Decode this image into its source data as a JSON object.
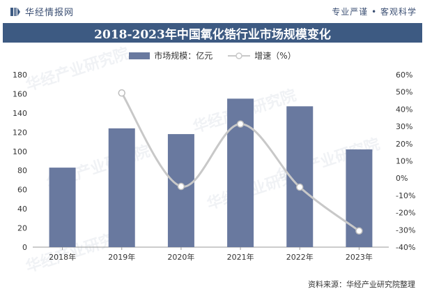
{
  "header": {
    "brand": "华经情报网",
    "slogan": "专业严谨 • 客观科学"
  },
  "title": "2018-2023年中国氧化锆行业市场规模变化",
  "watermark": "华经产业研究院",
  "source_note": "资料来源：华经产业研究院整理",
  "colors": {
    "bar": "#69799f",
    "line": "#c8c8c8",
    "title_bg": "#3d5a82"
  },
  "chart_data": {
    "type": "bar",
    "categories": [
      "2018年",
      "2019年",
      "2020年",
      "2021年",
      "2022年",
      "2023年"
    ],
    "series": [
      {
        "name": "市场规模：亿元",
        "type": "bar",
        "axis": "left",
        "values": [
          83,
          124,
          118,
          155,
          147,
          102
        ]
      },
      {
        "name": "增速（%）",
        "type": "line",
        "axis": "right",
        "values": [
          null,
          49.4,
          -4.8,
          31.4,
          -5.2,
          -30.6
        ]
      }
    ],
    "ylim": [
      0,
      180
    ],
    "yticks": [
      "0",
      "20",
      "40",
      "60",
      "80",
      "100",
      "120",
      "140",
      "160",
      "180"
    ],
    "y2lim": [
      -40,
      60
    ],
    "y2ticks": [
      "-40%",
      "-30%",
      "-20%",
      "-10%",
      "0%",
      "10%",
      "20%",
      "30%",
      "40%",
      "50%",
      "60%"
    ],
    "legend": "top-center",
    "grid": false
  }
}
